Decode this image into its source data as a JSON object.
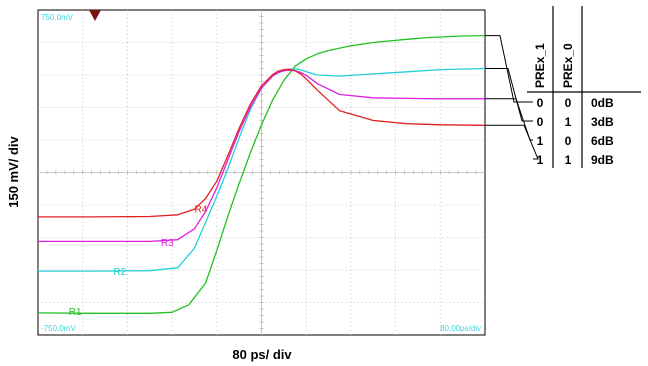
{
  "chart_data": {
    "type": "line",
    "xlabel": "80 ps/ div",
    "ylabel": "150 mV/ div",
    "scope_readouts": {
      "top_left": "750.0mV",
      "bottom_left": "-750.0mV",
      "bottom_right": "80.00ps/div"
    },
    "xlim": [
      -400,
      400
    ],
    "ylim": [
      -750,
      750
    ],
    "grid": true,
    "series": [
      {
        "name": "R1",
        "color": "#22c022",
        "x": [
          -400,
          -300,
          -200,
          -160,
          -130,
          -100,
          -80,
          -60,
          -40,
          -20,
          0,
          20,
          40,
          60,
          80,
          100,
          120,
          160,
          200,
          260,
          300,
          360,
          400
        ],
        "y": [
          -648,
          -650,
          -650,
          -645,
          -610,
          -510,
          -360,
          -200,
          -50,
          90,
          220,
          335,
          425,
          490,
          525,
          548,
          563,
          585,
          600,
          615,
          623,
          630,
          632
        ]
      },
      {
        "name": "R2",
        "color": "#22d0d8",
        "x": [
          -400,
          -300,
          -200,
          -150,
          -120,
          -100,
          -80,
          -60,
          -40,
          -20,
          0,
          20,
          30,
          40,
          50,
          60,
          70,
          80,
          100,
          140,
          200,
          260,
          320,
          400
        ],
        "y": [
          -455,
          -455,
          -453,
          -440,
          -350,
          -230,
          -110,
          20,
          160,
          290,
          390,
          445,
          460,
          470,
          476,
          478,
          474,
          465,
          450,
          445,
          455,
          465,
          475,
          480
        ]
      },
      {
        "name": "R3",
        "color": "#e020e0",
        "x": [
          -400,
          -300,
          -200,
          -150,
          -120,
          -100,
          -80,
          -60,
          -40,
          -20,
          0,
          20,
          30,
          40,
          50,
          60,
          70,
          80,
          100,
          140,
          200,
          260,
          320,
          400
        ],
        "y": [
          -318,
          -318,
          -318,
          -310,
          -260,
          -180,
          -70,
          60,
          190,
          300,
          390,
          445,
          462,
          470,
          472,
          470,
          462,
          448,
          410,
          360,
          345,
          342,
          340,
          340
        ]
      },
      {
        "name": "R4",
        "color": "#e02020",
        "x": [
          -400,
          -300,
          -200,
          -150,
          -120,
          -100,
          -80,
          -60,
          -40,
          -20,
          0,
          20,
          30,
          40,
          50,
          60,
          70,
          80,
          100,
          140,
          200,
          260,
          320,
          400
        ],
        "y": [
          -205,
          -205,
          -203,
          -195,
          -170,
          -120,
          -40,
          80,
          205,
          315,
          400,
          452,
          468,
          475,
          477,
          470,
          455,
          432,
          380,
          285,
          240,
          225,
          220,
          218
        ]
      }
    ],
    "trace_labels": [
      {
        "name": "R1",
        "x": -345,
        "y": -640
      },
      {
        "name": "R2",
        "x": -265,
        "y": -455
      },
      {
        "name": "R3",
        "x": -180,
        "y": -320
      },
      {
        "name": "R4",
        "x": -120,
        "y": -165
      }
    ]
  },
  "table": {
    "headers": [
      "PREx_1",
      "PREx_0",
      ""
    ],
    "rows": [
      [
        "0",
        "0",
        "0dB"
      ],
      [
        "0",
        "1",
        "3dB"
      ],
      [
        "1",
        "0",
        "6dB"
      ],
      [
        "1",
        "1",
        "9dB"
      ]
    ]
  },
  "colors": {
    "trigger_marker": "#7a1010",
    "grid": "#b8b8b8",
    "frame": "#000000"
  },
  "icons": {
    "trigger": "downward-triangle-marker"
  }
}
